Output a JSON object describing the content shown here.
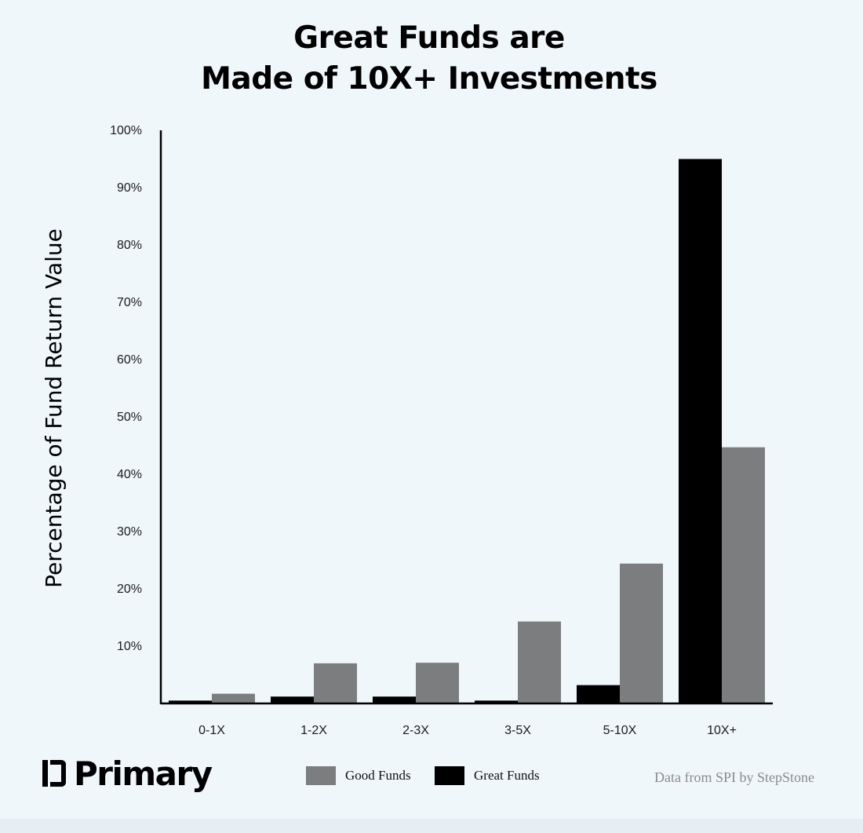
{
  "title_lines": [
    "Great Funds are",
    "Made of 10X+ Investments"
  ],
  "logo": {
    "text": "Primary"
  },
  "source": "Data from SPI by StepStone",
  "colors": {
    "background": "#f0f7fb",
    "good_funds": "#7b7d7e",
    "great_funds": "#000000",
    "axis": "#000000"
  },
  "chart_data": {
    "type": "bar",
    "title": "Great Funds are Made of 10X+ Investments",
    "xlabel": "",
    "ylabel": "Percentage of Fund Return Value",
    "ylim": [
      0,
      100
    ],
    "yticks": [
      10,
      20,
      30,
      40,
      50,
      60,
      70,
      80,
      90,
      100
    ],
    "ytick_labels": [
      "10%",
      "20%",
      "30%",
      "40%",
      "50%",
      "60%",
      "70%",
      "80%",
      "90%",
      "100%"
    ],
    "categories": [
      "0-1X",
      "1-2X",
      "2-3X",
      "3-5X",
      "5-10X",
      "10X+"
    ],
    "series": [
      {
        "name": "Great Funds",
        "color": "#000000",
        "values": [
          0.5,
          1.2,
          1.2,
          0.5,
          3.2,
          95
        ]
      },
      {
        "name": "Good Funds",
        "color": "#7b7d7e",
        "values": [
          1.7,
          7,
          7.1,
          14.3,
          24.4,
          44.7
        ]
      }
    ],
    "legend_order": [
      "Good Funds",
      "Great Funds"
    ],
    "legend_position": "bottom-center",
    "grid": false
  }
}
